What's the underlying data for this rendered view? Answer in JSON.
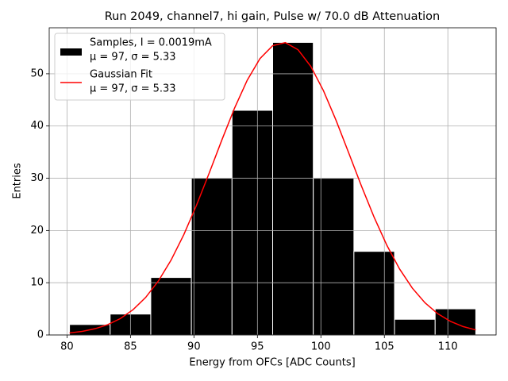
{
  "chart_data": {
    "type": "histogram",
    "title": "Run 2049, channel7, hi gain, Pulse w/ 70.0 dB Attenuation",
    "xlabel": "Energy from OFCs [ADC Counts]",
    "ylabel": "Entries",
    "xlim": [
      78.6,
      113.8
    ],
    "ylim": [
      0,
      58.8
    ],
    "xticks": [
      80,
      85,
      90,
      95,
      100,
      105,
      110
    ],
    "yticks": [
      0,
      10,
      20,
      30,
      40,
      50
    ],
    "grid": true,
    "legend": "upper left",
    "series": [
      {
        "type": "histogram",
        "name": "Samples, I = 0.0019mA",
        "stats": "μ = 97, σ = 5.33",
        "color": "#000000",
        "edgecolor": "#ffffff",
        "bins": [
          80.2,
          83.4,
          86.6,
          89.8,
          93.0,
          96.2,
          99.4,
          102.6,
          105.8,
          109.0,
          112.2
        ],
        "counts": [
          2,
          4,
          11,
          30,
          43,
          56,
          30,
          16,
          3,
          5
        ]
      },
      {
        "type": "line",
        "name": "Gaussian Fit",
        "stats": "μ = 97, σ = 5.33",
        "color": "#ff0000",
        "x": [
          80.2,
          81.2,
          82.2,
          83.2,
          84.2,
          85.2,
          86.2,
          87.2,
          88.2,
          89.2,
          90.2,
          91.2,
          92.2,
          93.2,
          94.2,
          95.2,
          96.2,
          97.2,
          98.2,
          99.2,
          100.2,
          101.2,
          102.2,
          103.2,
          104.2,
          105.2,
          106.2,
          107.2,
          108.2,
          109.2,
          110.2,
          111.2,
          112.2
        ],
        "values": [
          0.39,
          0.69,
          1.19,
          1.96,
          3.13,
          4.83,
          7.19,
          10.33,
          14.33,
          19.19,
          24.82,
          30.98,
          37.33,
          43.43,
          48.78,
          52.9,
          55.37,
          55.96,
          54.6,
          51.42,
          46.77,
          41.05,
          34.79,
          28.47,
          22.49,
          17.15,
          12.62,
          8.97,
          6.16,
          4.08,
          2.61,
          1.61,
          0.96
        ]
      }
    ]
  }
}
